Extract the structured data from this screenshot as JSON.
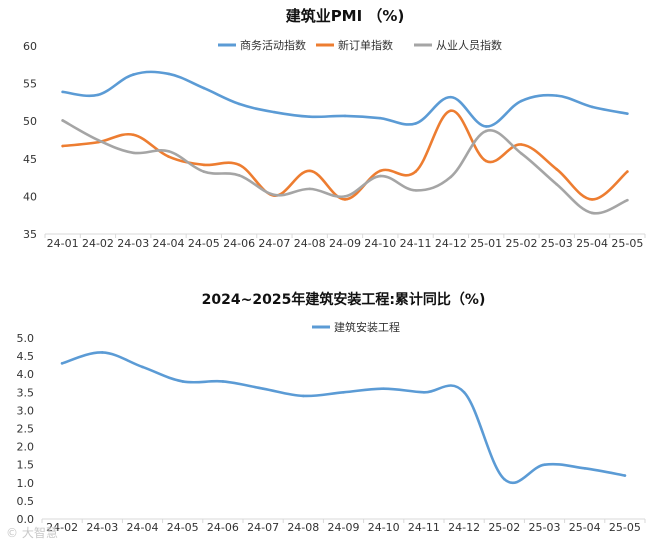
{
  "chart_data": [
    {
      "type": "line",
      "title": "建筑业PMI （%)",
      "categories": [
        "24-01",
        "24-02",
        "24-03",
        "24-04",
        "24-05",
        "24-06",
        "24-07",
        "24-08",
        "24-09",
        "24-10",
        "24-11",
        "24-12",
        "25-01",
        "25-02",
        "25-03",
        "25-04",
        "25-05"
      ],
      "series": [
        {
          "name": "商务活动指数",
          "color": "#5b9bd5",
          "values": [
            53.9,
            53.5,
            56.2,
            56.3,
            54.4,
            52.3,
            51.2,
            50.6,
            50.7,
            50.4,
            49.7,
            53.2,
            49.3,
            52.7,
            53.4,
            51.9,
            51.0
          ]
        },
        {
          "name": "新订单指数",
          "color": "#ed7d31",
          "values": [
            46.7,
            47.2,
            48.2,
            45.3,
            44.2,
            44.2,
            40.1,
            43.4,
            39.6,
            43.4,
            43.3,
            51.4,
            44.7,
            46.9,
            43.6,
            39.6,
            43.3
          ]
        },
        {
          "name": "从业人员指数",
          "color": "#a5a5a5",
          "values": [
            50.1,
            47.5,
            45.8,
            46.0,
            43.3,
            42.8,
            40.2,
            41.0,
            40.0,
            42.7,
            40.8,
            42.6,
            48.7,
            45.7,
            41.6,
            37.8,
            39.5
          ]
        }
      ],
      "ylim": [
        35,
        60
      ],
      "yticks": [
        35,
        40,
        45,
        50,
        55,
        60
      ],
      "legend": "top",
      "grid": false
    },
    {
      "type": "line",
      "title": "2024~2025年建筑安装工程:累计同比（%)",
      "categories": [
        "24-02",
        "24-03",
        "24-04",
        "24-05",
        "24-06",
        "24-07",
        "24-08",
        "24-09",
        "24-10",
        "24-11",
        "24-12",
        "25-02",
        "25-03",
        "25-04",
        "25-05"
      ],
      "series": [
        {
          "name": "建筑安装工程",
          "color": "#5b9bd5",
          "values": [
            4.3,
            4.6,
            4.2,
            3.8,
            3.8,
            3.6,
            3.4,
            3.5,
            3.6,
            3.5,
            3.5,
            1.1,
            1.5,
            1.4,
            1.2
          ]
        }
      ],
      "ylim": [
        0,
        5
      ],
      "yticks": [
        0.0,
        0.5,
        1.0,
        1.5,
        2.0,
        2.5,
        3.0,
        3.5,
        4.0,
        4.5,
        5.0
      ],
      "legend": "top",
      "grid": false
    }
  ],
  "watermark": "© 大智慧"
}
